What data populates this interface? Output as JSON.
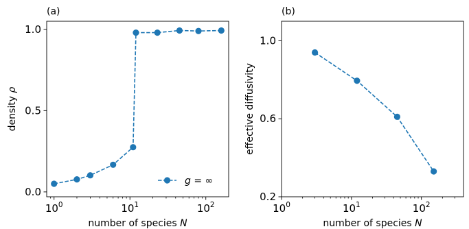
{
  "chart_data": [
    {
      "type": "line",
      "panel_label": "(a)",
      "xlabel": "number of species N",
      "ylabel": "density ρ",
      "xscale": "log",
      "xlim": [
        0.8,
        200
      ],
      "ylim": [
        -0.03,
        1.05
      ],
      "x_ticks": [
        1,
        10,
        100
      ],
      "x_tick_labels": [
        "10⁰",
        "10¹",
        "10²"
      ],
      "y_ticks": [
        0.0,
        0.5,
        1.0
      ],
      "y_tick_labels": [
        "0.0",
        "0.5",
        "1.0"
      ],
      "legend_position": "lower-right",
      "series": [
        {
          "name": "g = ∞",
          "color": "#1f77b4",
          "x": [
            1,
            2,
            3,
            6,
            11,
            12,
            23,
            45,
            80,
            160
          ],
          "y": [
            0.05,
            0.077,
            0.102,
            0.167,
            0.275,
            0.98,
            0.98,
            0.993,
            0.99,
            0.993
          ]
        }
      ]
    },
    {
      "type": "line",
      "panel_label": "(b)",
      "xlabel": "number of species N",
      "ylabel": "effective diffusivity",
      "xscale": "log",
      "xlim": [
        1,
        400
      ],
      "ylim": [
        0.2,
        1.1
      ],
      "x_ticks": [
        1,
        10,
        100
      ],
      "x_tick_labels": [
        "10⁰",
        "10¹",
        "10²"
      ],
      "y_ticks": [
        0.2,
        0.6,
        1.0
      ],
      "y_tick_labels": [
        "0.2",
        "0.6",
        "1.0"
      ],
      "series": [
        {
          "color": "#1f77b4",
          "x": [
            3,
            12,
            45,
            150
          ],
          "y": [
            0.94,
            0.795,
            0.61,
            0.33
          ]
        }
      ]
    }
  ]
}
